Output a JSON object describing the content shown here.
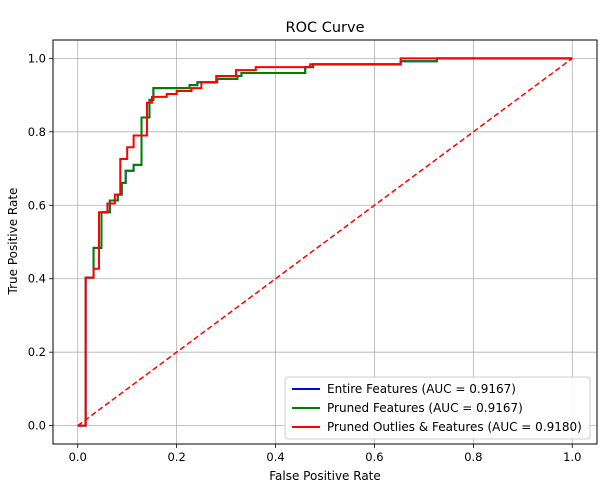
{
  "chart_data": {
    "type": "line",
    "title": "ROC Curve",
    "xlabel": "False Positive Rate",
    "ylabel": "True Positive Rate",
    "xlim": [
      -0.05,
      1.05
    ],
    "ylim": [
      -0.05,
      1.05
    ],
    "xticks": [
      0.0,
      0.2,
      0.4,
      0.6,
      0.8,
      1.0
    ],
    "yticks": [
      0.0,
      0.2,
      0.4,
      0.6,
      0.8,
      1.0
    ],
    "xtick_labels": [
      "0.0",
      "0.2",
      "0.4",
      "0.6",
      "0.8",
      "1.0"
    ],
    "ytick_labels": [
      "0.0",
      "0.2",
      "0.4",
      "0.6",
      "0.8",
      "1.0"
    ],
    "grid": true,
    "legend_position": "lower-right",
    "series": [
      {
        "name": "Entire Features (AUC = 0.9167)",
        "color": "#0000ff",
        "style": "solid",
        "x": [
          0.0,
          0.016,
          0.016,
          0.032,
          0.032,
          0.048,
          0.048,
          0.065,
          0.065,
          0.081,
          0.081,
          0.089,
          0.089,
          0.097,
          0.097,
          0.113,
          0.113,
          0.129,
          0.129,
          0.145,
          0.145,
          0.153,
          0.153,
          0.226,
          0.226,
          0.242,
          0.242,
          0.282,
          0.282,
          0.323,
          0.323,
          0.331,
          0.331,
          0.46,
          0.46,
          0.476,
          0.476,
          0.653,
          0.653,
          0.726,
          0.726,
          1.0
        ],
        "y": [
          0.0,
          0.0,
          0.403,
          0.403,
          0.484,
          0.484,
          0.581,
          0.581,
          0.613,
          0.613,
          0.629,
          0.629,
          0.661,
          0.661,
          0.694,
          0.694,
          0.71,
          0.71,
          0.839,
          0.839,
          0.887,
          0.887,
          0.919,
          0.919,
          0.927,
          0.927,
          0.935,
          0.935,
          0.944,
          0.944,
          0.952,
          0.952,
          0.96,
          0.96,
          0.976,
          0.976,
          0.984,
          0.984,
          0.992,
          0.992,
          1.0,
          1.0
        ]
      },
      {
        "name": "Pruned Features (AUC = 0.9167)",
        "color": "#008000",
        "style": "solid",
        "x": [
          0.0,
          0.016,
          0.016,
          0.032,
          0.032,
          0.048,
          0.048,
          0.065,
          0.065,
          0.081,
          0.081,
          0.089,
          0.089,
          0.097,
          0.097,
          0.113,
          0.113,
          0.129,
          0.129,
          0.145,
          0.145,
          0.153,
          0.153,
          0.226,
          0.226,
          0.242,
          0.242,
          0.282,
          0.282,
          0.323,
          0.323,
          0.331,
          0.331,
          0.46,
          0.46,
          0.476,
          0.476,
          0.653,
          0.653,
          0.726,
          0.726,
          1.0
        ],
        "y": [
          0.0,
          0.0,
          0.403,
          0.403,
          0.484,
          0.484,
          0.581,
          0.581,
          0.613,
          0.613,
          0.629,
          0.629,
          0.661,
          0.661,
          0.694,
          0.694,
          0.71,
          0.71,
          0.839,
          0.839,
          0.887,
          0.887,
          0.919,
          0.919,
          0.927,
          0.927,
          0.935,
          0.935,
          0.944,
          0.944,
          0.952,
          0.952,
          0.96,
          0.96,
          0.976,
          0.976,
          0.984,
          0.984,
          0.992,
          0.992,
          1.0,
          1.0
        ]
      },
      {
        "name": "Pruned Outlies & Features (AUC = 0.9180)",
        "color": "#ff0000",
        "style": "solid",
        "x": [
          0.0,
          0.016,
          0.016,
          0.032,
          0.032,
          0.043,
          0.043,
          0.06,
          0.06,
          0.075,
          0.075,
          0.086,
          0.086,
          0.1,
          0.1,
          0.113,
          0.113,
          0.14,
          0.14,
          0.15,
          0.15,
          0.18,
          0.18,
          0.2,
          0.2,
          0.23,
          0.23,
          0.25,
          0.25,
          0.28,
          0.28,
          0.32,
          0.32,
          0.36,
          0.36,
          0.47,
          0.47,
          0.653,
          0.653,
          1.0
        ],
        "y": [
          0.0,
          0.0,
          0.403,
          0.403,
          0.427,
          0.427,
          0.581,
          0.581,
          0.605,
          0.605,
          0.629,
          0.629,
          0.726,
          0.726,
          0.758,
          0.758,
          0.79,
          0.79,
          0.879,
          0.879,
          0.895,
          0.895,
          0.903,
          0.903,
          0.911,
          0.911,
          0.919,
          0.919,
          0.935,
          0.935,
          0.952,
          0.952,
          0.968,
          0.968,
          0.976,
          0.976,
          0.984,
          0.984,
          1.0,
          1.0
        ]
      },
      {
        "name": "",
        "color": "#ff0000",
        "style": "dashed",
        "x": [
          0.0,
          1.0
        ],
        "y": [
          0.0,
          1.0
        ]
      }
    ]
  }
}
